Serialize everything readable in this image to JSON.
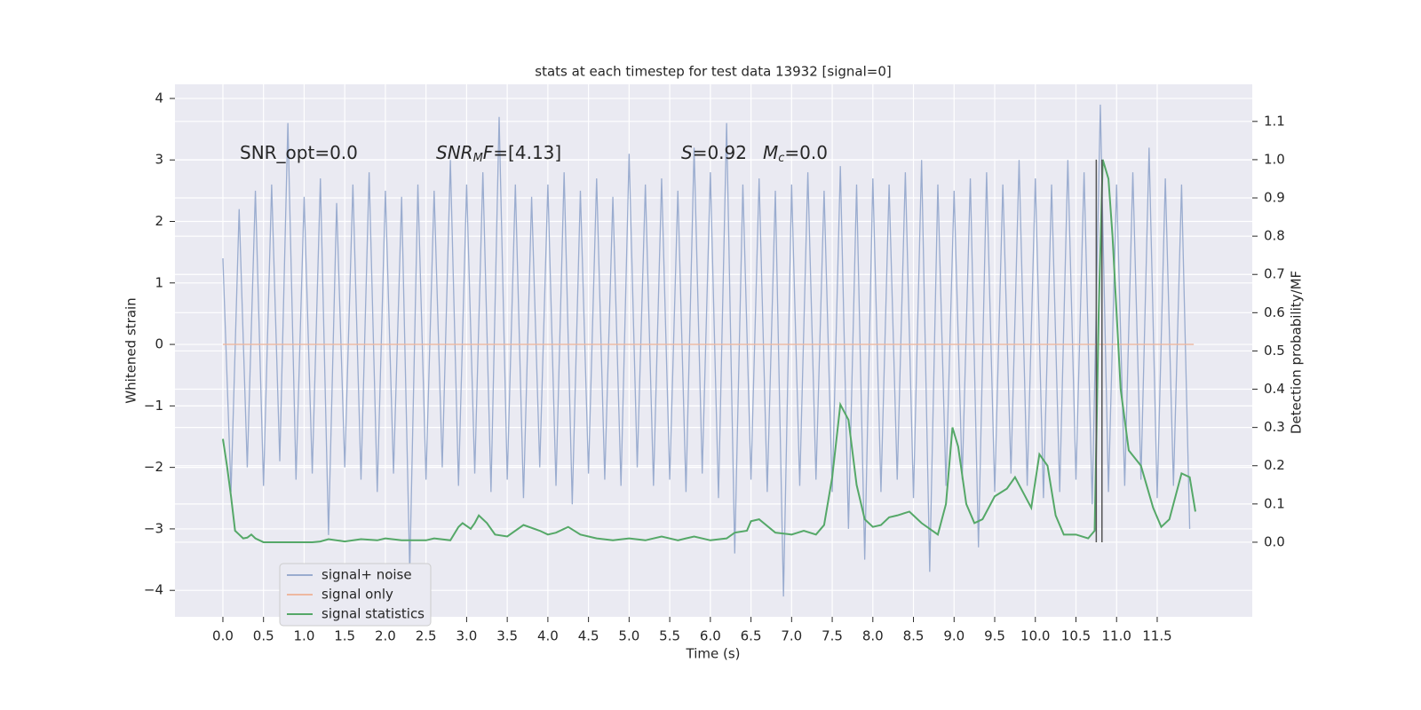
{
  "chart_data": {
    "type": "line",
    "title": "stats at each timestep for test data 13932 [signal=0]",
    "xlabel": "Time (s)",
    "ylabel": "Whitened strain",
    "y2label": "Detection probability/MF",
    "xlim": [
      -0.59,
      12.67
    ],
    "ylim": [
      -4.43,
      4.23
    ],
    "y2lim": [
      -0.195,
      1.197
    ],
    "xticks": [
      {
        "value": 0,
        "label": "0.0"
      },
      {
        "value": 0.5,
        "label": "0.5"
      },
      {
        "value": 1,
        "label": "1.0"
      },
      {
        "value": 1.5,
        "label": "1.5"
      },
      {
        "value": 2,
        "label": "2.0"
      },
      {
        "value": 2.5,
        "label": "2.5"
      },
      {
        "value": 3,
        "label": "3.0"
      },
      {
        "value": 3.5,
        "label": "3.5"
      },
      {
        "value": 4,
        "label": "4.0"
      },
      {
        "value": 4.5,
        "label": "4.5"
      },
      {
        "value": 5,
        "label": "5.0"
      },
      {
        "value": 5.5,
        "label": "5.5"
      },
      {
        "value": 6,
        "label": "6.0"
      },
      {
        "value": 6.5,
        "label": "6.5"
      },
      {
        "value": 7,
        "label": "7.0"
      },
      {
        "value": 7.5,
        "label": "7.5"
      },
      {
        "value": 8,
        "label": "8.0"
      },
      {
        "value": 8.5,
        "label": "8.5"
      },
      {
        "value": 9,
        "label": "9.0"
      },
      {
        "value": 9.5,
        "label": "9.5"
      },
      {
        "value": 10,
        "label": "10.0"
      },
      {
        "value": 10.5,
        "label": "10.5"
      },
      {
        "value": 11,
        "label": "11.0"
      },
      {
        "value": 11.5,
        "label": "11.5"
      }
    ],
    "yticks": [
      {
        "value": -4,
        "label": "−4"
      },
      {
        "value": -3,
        "label": "−3"
      },
      {
        "value": -2,
        "label": "−2"
      },
      {
        "value": -1,
        "label": "−1"
      },
      0,
      1,
      2,
      3,
      4
    ],
    "y2ticks": [
      {
        "value": 0,
        "label": "0.0"
      },
      {
        "value": 0.1,
        "label": "0.1"
      },
      {
        "value": 0.2,
        "label": "0.2"
      },
      {
        "value": 0.3,
        "label": "0.3"
      },
      {
        "value": 0.4,
        "label": "0.4"
      },
      {
        "value": 0.5,
        "label": "0.5"
      },
      {
        "value": 0.6,
        "label": "0.6"
      },
      {
        "value": 0.7,
        "label": "0.7"
      },
      {
        "value": 0.8,
        "label": "0.8"
      },
      {
        "value": 0.9,
        "label": "0.9"
      },
      {
        "value": 1,
        "label": "1.0"
      },
      {
        "value": 1.1,
        "label": "1.1"
      }
    ],
    "grid": true,
    "legend": "lower left",
    "annotations": [
      {
        "parts": [
          "SNR_opt=0.0"
        ]
      },
      {
        "parts": [
          "SNR",
          "M",
          "F",
          "=[4.13]"
        ]
      },
      {
        "parts": [
          "S",
          "=0.92"
        ]
      },
      {
        "parts": [
          "M",
          "c",
          "=0.0"
        ]
      }
    ],
    "series": [
      {
        "name": "signal+ noise",
        "color": "#9aaccf",
        "x": [
          0,
          0.1,
          0.2,
          0.3,
          0.4,
          0.5,
          0.6,
          0.7,
          0.8,
          0.9,
          1,
          1.1,
          1.2,
          1.3,
          1.4,
          1.5,
          1.6,
          1.7,
          1.8,
          1.9,
          2,
          2.1,
          2.2,
          2.3,
          2.4,
          2.5,
          2.6,
          2.7,
          2.8,
          2.9,
          3,
          3.1,
          3.2,
          3.3,
          3.4,
          3.5,
          3.6,
          3.7,
          3.8,
          3.9,
          4,
          4.1,
          4.2,
          4.3,
          4.4,
          4.5,
          4.6,
          4.7,
          4.8,
          4.9,
          5,
          5.1,
          5.2,
          5.3,
          5.4,
          5.5,
          5.6,
          5.7,
          5.8,
          5.9,
          6,
          6.1,
          6.2,
          6.3,
          6.4,
          6.5,
          6.6,
          6.7,
          6.8,
          6.9,
          7,
          7.1,
          7.2,
          7.3,
          7.4,
          7.5,
          7.6,
          7.7,
          7.8,
          7.9,
          8,
          8.1,
          8.2,
          8.3,
          8.4,
          8.5,
          8.6,
          8.7,
          8.8,
          8.9,
          9,
          9.1,
          9.2,
          9.3,
          9.4,
          9.5,
          9.6,
          9.7,
          9.8,
          9.9,
          10,
          10.1,
          10.2,
          10.3,
          10.4,
          10.5,
          10.6,
          10.7,
          10.8,
          10.9,
          11,
          11.1,
          11.2,
          11.3,
          11.4,
          11.5,
          11.6,
          11.7,
          11.8,
          11.9
        ],
        "values": [
          1.4,
          -2.4,
          2.2,
          -2.0,
          2.5,
          -2.3,
          2.6,
          -1.9,
          3.6,
          -2.2,
          2.4,
          -2.1,
          2.7,
          -3.1,
          2.3,
          -2.0,
          2.6,
          -2.2,
          2.8,
          -2.4,
          2.5,
          -2.1,
          2.4,
          -3.7,
          2.6,
          -2.2,
          2.5,
          -2.0,
          3.0,
          -2.3,
          2.6,
          -2.1,
          2.8,
          -2.4,
          3.7,
          -2.2,
          2.6,
          -2.5,
          2.4,
          -2.0,
          2.6,
          -2.3,
          2.8,
          -2.6,
          2.5,
          -2.1,
          2.7,
          -2.2,
          2.4,
          -2.3,
          3.1,
          -2.0,
          2.6,
          -2.3,
          2.7,
          -2.2,
          2.5,
          -2.4,
          3.2,
          -2.1,
          2.8,
          -2.5,
          3.6,
          -3.4,
          2.6,
          -2.2,
          2.7,
          -2.4,
          2.5,
          -4.1,
          2.6,
          -2.3,
          2.8,
          -2.2,
          2.5,
          -2.4,
          2.9,
          -3.0,
          2.6,
          -3.5,
          2.7,
          -2.4,
          2.6,
          -2.2,
          2.8,
          -2.5,
          3.0,
          -3.7,
          2.6,
          -2.3,
          2.5,
          -2.2,
          2.7,
          -3.3,
          2.8,
          -2.4,
          2.6,
          -2.1,
          3.0,
          -2.3,
          2.7,
          -2.5,
          2.6,
          -2.4,
          3.0,
          -2.2,
          2.8,
          -2.6,
          3.9,
          -2.4,
          2.6,
          -2.3,
          2.8,
          -2.2,
          3.2,
          -2.5,
          2.7,
          -2.3,
          2.6,
          -3.0
        ]
      },
      {
        "name": "signal only",
        "color": "#eeb8a0",
        "x": [
          0,
          11.95
        ],
        "values": [
          0,
          0
        ]
      },
      {
        "name": "signal statistics",
        "color": "#55a868",
        "axis": "y2",
        "x": [
          0,
          0.05,
          0.1,
          0.15,
          0.2,
          0.25,
          0.3,
          0.35,
          0.4,
          0.5,
          0.7,
          0.9,
          1,
          1.1,
          1.2,
          1.3,
          1.5,
          1.7,
          1.9,
          2,
          2.2,
          2.5,
          2.6,
          2.8,
          2.9,
          2.95,
          3.05,
          3.1,
          3.15,
          3.25,
          3.35,
          3.5,
          3.7,
          3.9,
          4,
          4.1,
          4.25,
          4.4,
          4.6,
          4.8,
          5,
          5.2,
          5.4,
          5.6,
          5.7,
          5.8,
          6,
          6.2,
          6.3,
          6.45,
          6.5,
          6.6,
          6.8,
          7,
          7.15,
          7.3,
          7.4,
          7.5,
          7.6,
          7.7,
          7.8,
          7.9,
          8,
          8.1,
          8.2,
          8.3,
          8.45,
          8.6,
          8.8,
          8.9,
          8.98,
          9.05,
          9.15,
          9.25,
          9.35,
          9.5,
          9.65,
          9.75,
          9.85,
          9.95,
          10.05,
          10.15,
          10.25,
          10.35,
          10.5,
          10.65,
          10.73,
          10.78,
          10.83,
          10.9,
          10.95,
          11.05,
          11.15,
          11.3,
          11.45,
          11.55,
          11.65,
          11.8,
          11.9,
          11.97
        ],
        "values": [
          0.27,
          0.2,
          0.12,
          0.03,
          0.02,
          0.01,
          0.012,
          0.02,
          0.01,
          0,
          0,
          0,
          0,
          0,
          0.002,
          0.008,
          0.002,
          0.008,
          0.005,
          0.01,
          0.005,
          0.005,
          0.01,
          0.005,
          0.04,
          0.05,
          0.035,
          0.05,
          0.07,
          0.05,
          0.02,
          0.015,
          0.045,
          0.03,
          0.02,
          0.025,
          0.04,
          0.02,
          0.01,
          0.005,
          0.01,
          0.005,
          0.015,
          0.005,
          0.01,
          0.015,
          0.005,
          0.01,
          0.025,
          0.03,
          0.055,
          0.06,
          0.025,
          0.02,
          0.03,
          0.02,
          0.045,
          0.17,
          0.36,
          0.32,
          0.15,
          0.06,
          0.04,
          0.045,
          0.065,
          0.07,
          0.08,
          0.05,
          0.02,
          0.1,
          0.3,
          0.25,
          0.1,
          0.05,
          0.06,
          0.12,
          0.14,
          0.17,
          0.13,
          0.09,
          0.23,
          0.2,
          0.07,
          0.02,
          0.02,
          0.01,
          0.03,
          0.6,
          1.0,
          0.95,
          0.8,
          0.4,
          0.24,
          0.2,
          0.09,
          0.04,
          0.06,
          0.18,
          0.17,
          0.08
        ]
      }
    ],
    "vlines": {
      "color": "#555555",
      "x": [
        10.75,
        10.82
      ],
      "y2": [
        0,
        1
      ]
    }
  }
}
